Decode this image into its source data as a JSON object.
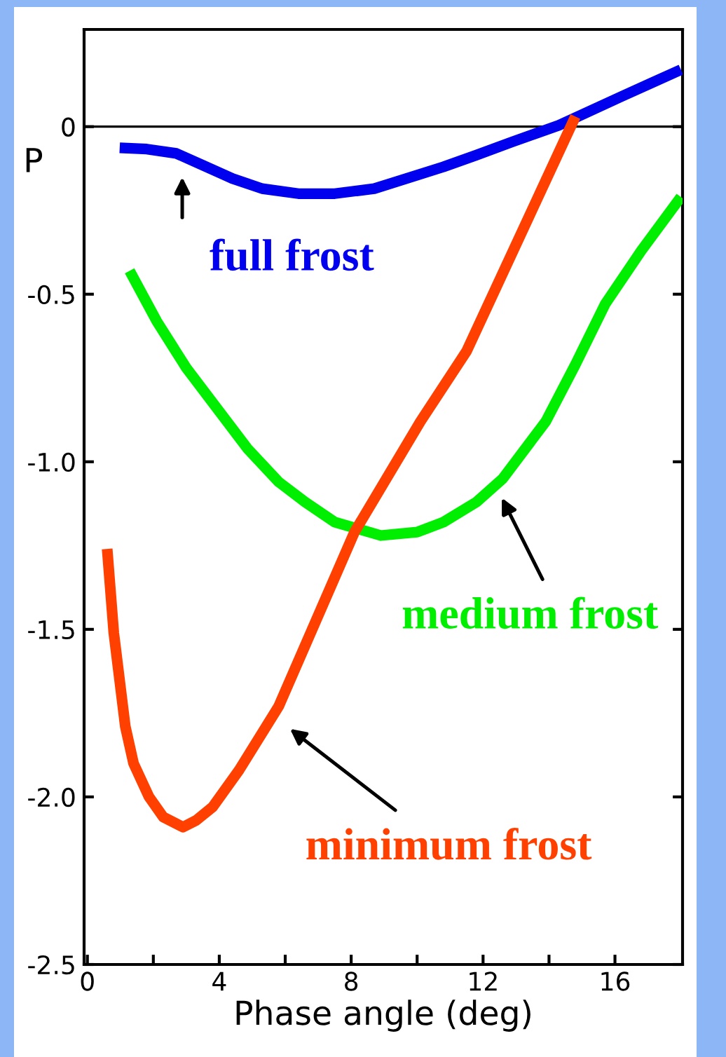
{
  "chart_data": {
    "type": "line",
    "xlabel": "Phase angle (deg)",
    "ylabel": "P",
    "xlim": [
      -0.1,
      18.05
    ],
    "ylim": [
      -2.5,
      0.29
    ],
    "xticks": [
      0,
      {
        "value": 2,
        "label": null
      },
      4,
      {
        "value": 6,
        "label": null
      },
      8,
      {
        "value": 10,
        "label": null
      },
      12,
      {
        "value": 14,
        "label": null
      },
      16
    ],
    "yticks": [
      {
        "value": -2.5,
        "label": "-2.5"
      },
      {
        "value": -2.0,
        "label": "-2.0"
      },
      {
        "value": -1.5,
        "label": "-1.5"
      },
      {
        "value": -1.0,
        "label": "-1.0"
      },
      {
        "value": -0.5,
        "label": "-0.5"
      },
      0
    ],
    "grid": false,
    "legend": false,
    "marker": "none",
    "line_style": "solid",
    "ref_lines": [
      {
        "axis": "y",
        "value": 0,
        "color": "#000000"
      }
    ],
    "series": [
      {
        "color": "#0000ee",
        "x": [
          0.98,
          1.8,
          2.7,
          3.5,
          4.4,
          5.3,
          6.4,
          7.5,
          8.7,
          10.8,
          11.8,
          12.9,
          14.3,
          16.2,
          17.1,
          18.0
        ],
        "values": [
          -0.063,
          -0.067,
          -0.08,
          -0.115,
          -0.155,
          -0.185,
          -0.2,
          -0.2,
          -0.185,
          -0.12,
          -0.085,
          -0.045,
          0.004,
          0.09,
          0.13,
          0.17
        ]
      },
      {
        "color": "#00ee00",
        "x": [
          1.28,
          2.1,
          3.0,
          4.85,
          5.8,
          6.6,
          7.5,
          8.9,
          10.0,
          10.8,
          11.8,
          12.6,
          13.9,
          14.8,
          15.7,
          16.8,
          18.0
        ],
        "values": [
          -0.43,
          -0.58,
          -0.72,
          -0.96,
          -1.06,
          -1.12,
          -1.18,
          -1.22,
          -1.21,
          -1.18,
          -1.12,
          -1.05,
          -0.88,
          -0.71,
          -0.53,
          -0.37,
          -0.21
        ]
      },
      {
        "color": "#ff4000",
        "x": [
          0.6,
          0.8,
          1.15,
          1.4,
          1.87,
          2.3,
          2.9,
          3.3,
          3.8,
          4.6,
          5.8,
          8.1,
          10.1,
          11.5,
          14.8
        ],
        "values": [
          -1.26,
          -1.51,
          -1.79,
          -1.9,
          -2.0,
          -2.06,
          -2.09,
          -2.07,
          -2.03,
          -1.92,
          -1.73,
          -1.21,
          -0.88,
          -0.67,
          0.03
        ]
      }
    ],
    "annotations": [
      "full frost",
      "medium frost",
      "minimum frost"
    ]
  }
}
